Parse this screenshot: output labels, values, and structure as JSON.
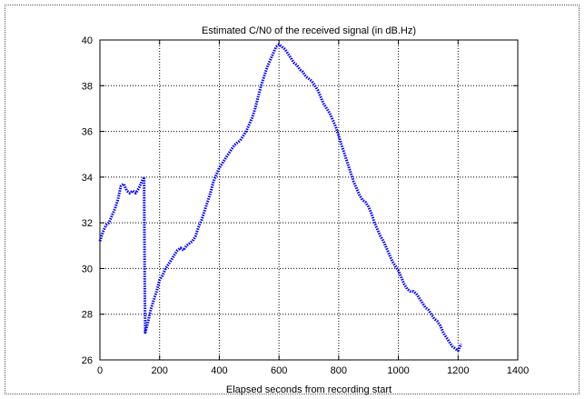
{
  "chart_data": {
    "type": "line",
    "title": "Estimated C/N0 of the received signal (in dB.Hz)",
    "xlabel": "Elapsed seconds from recording start",
    "ylabel": "",
    "xlim": [
      0,
      1400
    ],
    "ylim": [
      26,
      40
    ],
    "xticks": [
      0,
      200,
      400,
      600,
      800,
      1000,
      1200,
      1400
    ],
    "yticks": [
      26,
      28,
      30,
      32,
      34,
      36,
      38,
      40
    ],
    "grid": true,
    "series_color": "#0000ff",
    "series": [
      {
        "x": [
          0,
          10,
          20,
          30,
          40,
          50,
          60,
          70,
          80,
          90,
          100,
          110,
          120,
          130,
          140,
          148,
          150,
          152,
          160,
          170,
          180,
          190,
          200,
          210,
          220,
          230,
          240,
          250,
          260,
          270,
          280,
          290,
          300,
          310,
          320,
          330,
          340,
          350,
          360,
          370,
          380,
          390,
          400,
          410,
          420,
          430,
          440,
          450,
          460,
          470,
          480,
          490,
          500,
          510,
          520,
          530,
          540,
          550,
          560,
          570,
          580,
          590,
          600,
          610,
          620,
          630,
          640,
          650,
          660,
          670,
          680,
          690,
          700,
          710,
          720,
          730,
          740,
          750,
          760,
          770,
          780,
          790,
          800,
          810,
          820,
          830,
          840,
          850,
          860,
          870,
          880,
          890,
          900,
          910,
          920,
          930,
          940,
          950,
          960,
          970,
          980,
          990,
          1000,
          1010,
          1020,
          1030,
          1040,
          1050,
          1060,
          1070,
          1080,
          1090,
          1100,
          1110,
          1120,
          1130,
          1140,
          1150,
          1160,
          1170,
          1180,
          1190,
          1200,
          1210
        ],
        "y": [
          31.2,
          31.6,
          31.9,
          32.0,
          32.3,
          32.6,
          33.0,
          33.6,
          33.7,
          33.4,
          33.3,
          33.4,
          33.3,
          33.5,
          33.8,
          34.0,
          29.5,
          27.2,
          27.6,
          28.2,
          28.6,
          29.0,
          29.5,
          29.7,
          30.0,
          30.2,
          30.4,
          30.6,
          30.8,
          30.9,
          30.8,
          31.0,
          31.1,
          31.2,
          31.4,
          31.8,
          32.1,
          32.5,
          32.9,
          33.3,
          33.8,
          34.1,
          34.4,
          34.6,
          34.8,
          35.0,
          35.2,
          35.4,
          35.5,
          35.6,
          35.8,
          36.0,
          36.3,
          36.6,
          37.0,
          37.5,
          38.0,
          38.4,
          38.8,
          39.1,
          39.4,
          39.7,
          39.8,
          39.7,
          39.6,
          39.4,
          39.2,
          39.0,
          38.9,
          38.7,
          38.6,
          38.4,
          38.3,
          38.2,
          38.0,
          37.8,
          37.5,
          37.2,
          37.0,
          36.8,
          36.5,
          36.2,
          35.8,
          35.4,
          35.0,
          34.6,
          34.2,
          33.8,
          33.5,
          33.2,
          33.0,
          32.9,
          32.7,
          32.4,
          32.0,
          31.7,
          31.4,
          31.2,
          30.9,
          30.6,
          30.3,
          30.1,
          29.9,
          29.6,
          29.3,
          29.1,
          29.0,
          29.0,
          28.9,
          28.7,
          28.5,
          28.3,
          28.2,
          28.0,
          27.8,
          27.7,
          27.5,
          27.2,
          27.0,
          26.8,
          26.6,
          26.5,
          26.4,
          26.7
        ]
      }
    ]
  }
}
